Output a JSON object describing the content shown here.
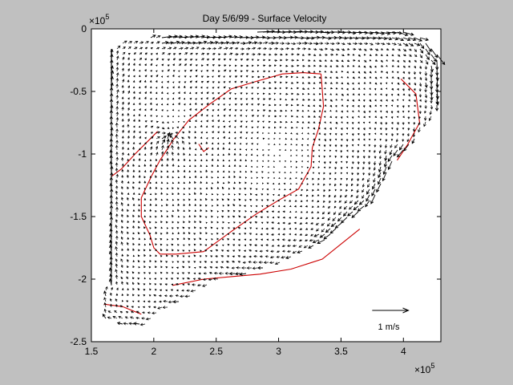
{
  "chart_data": {
    "type": "vector-field",
    "title": "Day 5/6/99 - Surface Velocity",
    "xlabel": "",
    "ylabel": "",
    "x_exponent_label": "×10",
    "x_exponent_power": "5",
    "y_exponent_label": "×10",
    "y_exponent_power": "5",
    "xlim": [
      150000,
      430000
    ],
    "ylim": [
      -250000,
      0
    ],
    "x_ticks": [
      {
        "value": 150000,
        "label": "1.5"
      },
      {
        "value": 200000,
        "label": "2"
      },
      {
        "value": 250000,
        "label": "2.5"
      },
      {
        "value": 300000,
        "label": "3"
      },
      {
        "value": 350000,
        "label": "3.5"
      },
      {
        "value": 400000,
        "label": "4"
      }
    ],
    "y_ticks": [
      {
        "value": 0,
        "label": "0"
      },
      {
        "value": -50000,
        "label": "-0.5"
      },
      {
        "value": -100000,
        "label": "-1"
      },
      {
        "value": -150000,
        "label": "-1.5"
      },
      {
        "value": -200000,
        "label": "-2"
      },
      {
        "value": -250000,
        "label": "-2.5"
      }
    ],
    "grid": false,
    "scale_arrow": {
      "label": "1 m/s",
      "magnitude_ms": 1,
      "x_start": 375000,
      "x_end": 404000,
      "y": -225000
    },
    "colors": {
      "background": "#c0c0c0",
      "axes": "#ffffff",
      "arrows": "#000000",
      "contours": "#cc0000"
    },
    "domain_boundary": [
      [
        166000,
        -18000
      ],
      [
        172000,
        -11000
      ],
      [
        205000,
        -5000
      ],
      [
        240000,
        -4000
      ],
      [
        262000,
        -3000
      ],
      [
        300000,
        -2000
      ],
      [
        355000,
        0
      ],
      [
        395000,
        -1000
      ],
      [
        415000,
        -5000
      ],
      [
        429000,
        -23000
      ],
      [
        428000,
        -55000
      ],
      [
        428000,
        -63000
      ],
      [
        419000,
        -75000
      ],
      [
        410000,
        -88000
      ],
      [
        393000,
        -103000
      ],
      [
        385000,
        -120000
      ],
      [
        374000,
        -140000
      ],
      [
        357000,
        -152000
      ],
      [
        338000,
        -170000
      ],
      [
        325000,
        -176000
      ],
      [
        296000,
        -190000
      ],
      [
        272000,
        -196000
      ],
      [
        250000,
        -201000
      ],
      [
        236000,
        -210000
      ],
      [
        218000,
        -219000
      ],
      [
        208000,
        -224000
      ],
      [
        193000,
        -236000
      ],
      [
        175000,
        -236000
      ],
      [
        161000,
        -233000
      ],
      [
        158000,
        -228000
      ],
      [
        160000,
        -208000
      ],
      [
        166000,
        -205000
      ],
      [
        166000,
        -100000
      ],
      [
        166000,
        -18000
      ]
    ],
    "contours": [
      [
        [
          166000,
          -118000
        ],
        [
          174000,
          -112000
        ],
        [
          185000,
          -100000
        ],
        [
          197000,
          -88000
        ],
        [
          203000,
          -82000
        ]
      ],
      [
        [
          334000,
          -36000
        ],
        [
          336000,
          -62000
        ],
        [
          332000,
          -80000
        ],
        [
          327000,
          -95000
        ],
        [
          326000,
          -110000
        ],
        [
          316000,
          -128000
        ],
        [
          300000,
          -137000
        ],
        [
          282000,
          -148000
        ],
        [
          262000,
          -162000
        ],
        [
          240000,
          -178000
        ],
        [
          218000,
          -180000
        ],
        [
          205000,
          -180000
        ],
        [
          200000,
          -175000
        ],
        [
          197000,
          -165000
        ],
        [
          190000,
          -150000
        ],
        [
          190000,
          -135000
        ],
        [
          198000,
          -118000
        ],
        [
          205000,
          -105000
        ],
        [
          216000,
          -88000
        ],
        [
          228000,
          -73000
        ],
        [
          245000,
          -60000
        ],
        [
          262000,
          -48000
        ],
        [
          282000,
          -42000
        ],
        [
          303000,
          -36000
        ],
        [
          320000,
          -35000
        ],
        [
          334000,
          -36000
        ]
      ],
      [
        [
          215000,
          -205000
        ],
        [
          240000,
          -200000
        ],
        [
          262000,
          -198000
        ],
        [
          285000,
          -196000
        ],
        [
          310000,
          -192000
        ],
        [
          335000,
          -184000
        ],
        [
          350000,
          -172000
        ],
        [
          365000,
          -160000
        ]
      ],
      [
        [
          398000,
          -40000
        ],
        [
          410000,
          -52000
        ],
        [
          413000,
          -75000
        ],
        [
          403000,
          -93000
        ],
        [
          395000,
          -105000
        ]
      ],
      [
        [
          160000,
          -220000
        ],
        [
          175000,
          -222000
        ],
        [
          190000,
          -228000
        ]
      ],
      [
        [
          236000,
          -92000
        ],
        [
          240000,
          -98000
        ],
        [
          244000,
          -95000
        ]
      ]
    ],
    "field_description": "Surface velocity vectors on a regular grid over the basin; strongest currents along the northern shelf from x≈2.1e5 to 4.2e5 and along the south-east coast; cyclonic gyre centered near (3.0e5, -1.05e5)."
  }
}
